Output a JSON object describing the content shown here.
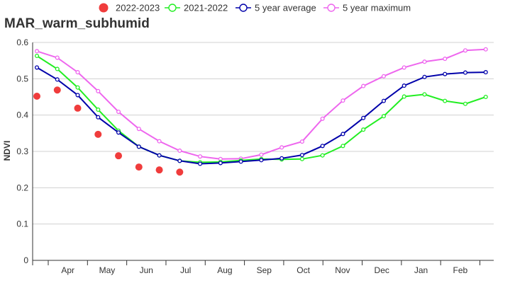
{
  "chart_data": {
    "type": "line",
    "title": "MAR_warm_subhumid",
    "xlabel": "",
    "ylabel": "NDVI",
    "ylim": [
      0,
      0.6
    ],
    "y_ticks": [
      "0",
      "0.1",
      "0.2",
      "0.3",
      "0.4",
      "0.5",
      "0.6"
    ],
    "x_ticks": [
      "Apr",
      "May",
      "Jun",
      "Jul",
      "Aug",
      "Sep",
      "Oct",
      "Nov",
      "Dec",
      "Jan",
      "Feb"
    ],
    "grid": true,
    "legend_position": "top",
    "colors": {
      "2022-2023": "#f03c3c",
      "2021-2022": "#22ee22",
      "5 year average": "#0000aa",
      "5 year maximum": "#ee66ee",
      "grid": "#d0d0d0",
      "axis": "#333333"
    },
    "series": [
      {
        "name": "2022-2023",
        "marker": "dot",
        "values": [
          0.452,
          0.469,
          0.419,
          0.347,
          0.288,
          0.257,
          0.249,
          0.243
        ]
      },
      {
        "name": "2021-2022",
        "marker": "line",
        "values": [
          0.563,
          0.527,
          0.476,
          0.415,
          0.357,
          0.313,
          0.289,
          0.274,
          0.27,
          0.271,
          0.275,
          0.279,
          0.278,
          0.279,
          0.289,
          0.315,
          0.36,
          0.397,
          0.451,
          0.457,
          0.439,
          0.431,
          0.45
        ]
      },
      {
        "name": "5 year average",
        "marker": "line",
        "values": [
          0.531,
          0.498,
          0.455,
          0.394,
          0.352,
          0.313,
          0.289,
          0.274,
          0.266,
          0.268,
          0.272,
          0.276,
          0.281,
          0.29,
          0.315,
          0.348,
          0.392,
          0.439,
          0.481,
          0.505,
          0.513,
          0.517,
          0.518
        ]
      },
      {
        "name": "5 year maximum",
        "marker": "line",
        "values": [
          0.576,
          0.558,
          0.518,
          0.466,
          0.409,
          0.362,
          0.328,
          0.302,
          0.286,
          0.279,
          0.28,
          0.291,
          0.311,
          0.327,
          0.39,
          0.44,
          0.48,
          0.507,
          0.531,
          0.547,
          0.555,
          0.578,
          0.581
        ]
      }
    ]
  }
}
